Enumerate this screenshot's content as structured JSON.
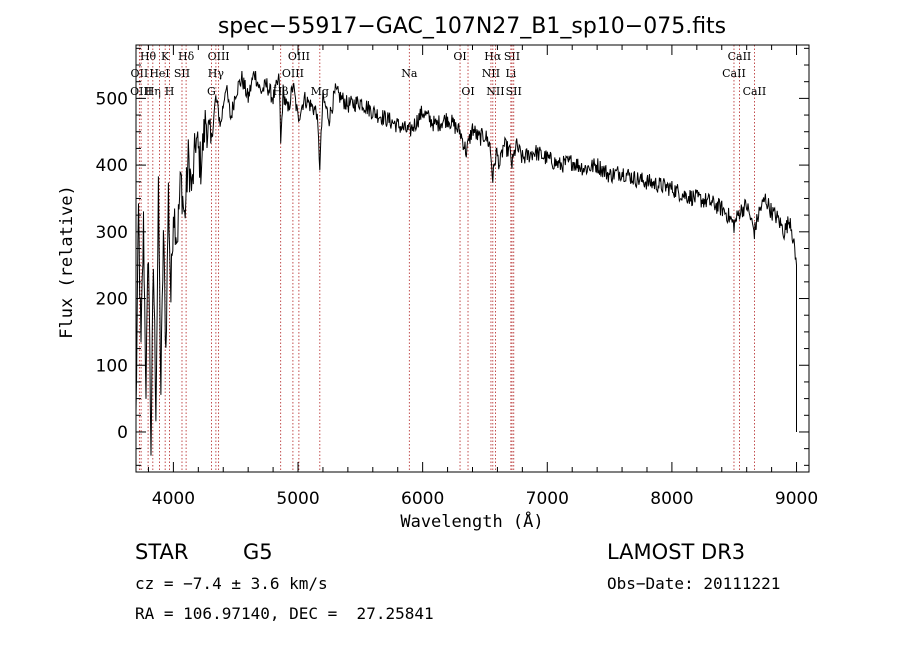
{
  "chart_data": {
    "type": "line",
    "title": "spec−55917−GAC_107N27_B1_sp10−075.fits",
    "xlabel": "Wavelength (Å)",
    "ylabel": "Flux (relative)",
    "xlim": [
      3700,
      9100
    ],
    "ylim": [
      -60,
      580
    ],
    "xticks": [
      4000,
      5000,
      6000,
      7000,
      8000,
      9000
    ],
    "yticks": [
      0,
      100,
      200,
      300,
      400,
      500
    ],
    "series": [
      {
        "name": "spectrum",
        "x": [
          3700,
          3720,
          3740,
          3760,
          3780,
          3800,
          3820,
          3840,
          3860,
          3880,
          3900,
          3920,
          3940,
          3960,
          3980,
          4000,
          4030,
          4060,
          4090,
          4120,
          4150,
          4180,
          4220,
          4260,
          4300,
          4340,
          4380,
          4420,
          4460,
          4500,
          4550,
          4600,
          4650,
          4700,
          4750,
          4800,
          4850,
          4861,
          4880,
          4920,
          4960,
          5000,
          5050,
          5100,
          5150,
          5175,
          5200,
          5250,
          5300,
          5400,
          5500,
          5600,
          5700,
          5800,
          5893,
          5950,
          6000,
          6100,
          6200,
          6300,
          6350,
          6400,
          6450,
          6500,
          6540,
          6563,
          6590,
          6620,
          6650,
          6700,
          6717,
          6750,
          6800,
          6900,
          7000,
          7100,
          7200,
          7300,
          7400,
          7500,
          7600,
          7700,
          7800,
          7900,
          8000,
          8100,
          8200,
          8300,
          8400,
          8450,
          8498,
          8542,
          8600,
          8662,
          8700,
          8750,
          8800,
          8850,
          8900,
          8950,
          9000
        ],
        "y": [
          20,
          330,
          120,
          310,
          70,
          280,
          -20,
          250,
          40,
          350,
          60,
          300,
          120,
          360,
          200,
          340,
          290,
          380,
          320,
          410,
          360,
          440,
          400,
          470,
          430,
          500,
          460,
          520,
          470,
          510,
          530,
          500,
          540,
          510,
          520,
          500,
          530,
          430,
          510,
          480,
          520,
          470,
          500,
          490,
          480,
          400,
          500,
          470,
          510,
          490,
          495,
          480,
          470,
          460,
          450,
          465,
          480,
          460,
          470,
          450,
          420,
          455,
          440,
          445,
          430,
          380,
          420,
          400,
          430,
          420,
          400,
          430,
          410,
          420,
          410,
          400,
          405,
          395,
          400,
          385,
          390,
          380,
          375,
          370,
          365,
          355,
          350,
          345,
          335,
          325,
          310,
          330,
          340,
          300,
          330,
          350,
          330,
          320,
          300,
          320,
          250
        ]
      }
    ],
    "line_marks": [
      {
        "label": "Hθ",
        "x": 3797,
        "row": 1
      },
      {
        "label": "OII",
        "x": 3727,
        "row": 2
      },
      {
        "label": "OIII",
        "x": 3741,
        "row": 3
      },
      {
        "label": "Hη",
        "x": 3835,
        "row": 3
      },
      {
        "label": "K",
        "x": 3934,
        "row": 1
      },
      {
        "label": "HeI",
        "x": 3889,
        "row": 2
      },
      {
        "label": "H",
        "x": 3969,
        "row": 3
      },
      {
        "label": "SII",
        "x": 4069,
        "row": 2
      },
      {
        "label": "Hδ",
        "x": 4102,
        "row": 1
      },
      {
        "label": "OIII",
        "x": 4363,
        "row": 1
      },
      {
        "label": "Hγ",
        "x": 4341,
        "row": 2
      },
      {
        "label": "G",
        "x": 4305,
        "row": 3
      },
      {
        "label": "OIII",
        "x": 5007,
        "row": 1
      },
      {
        "label": "OIII",
        "x": 4959,
        "row": 2
      },
      {
        "label": "Hβ",
        "x": 4861,
        "row": 3
      },
      {
        "label": "Mg",
        "x": 5175,
        "row": 3
      },
      {
        "label": "Na",
        "x": 5893,
        "row": 2
      },
      {
        "label": "OI",
        "x": 6300,
        "row": 1
      },
      {
        "label": "OI",
        "x": 6364,
        "row": 3
      },
      {
        "label": "Hα",
        "x": 6563,
        "row": 1
      },
      {
        "label": "SII",
        "x": 6717,
        "row": 1
      },
      {
        "label": "NII",
        "x": 6548,
        "row": 2
      },
      {
        "label": "Li",
        "x": 6708,
        "row": 2
      },
      {
        "label": "NII",
        "x": 6584,
        "row": 3
      },
      {
        "label": "SII",
        "x": 6731,
        "row": 3
      },
      {
        "label": "CaII",
        "x": 8542,
        "row": 1
      },
      {
        "label": "CaII",
        "x": 8498,
        "row": 2
      },
      {
        "label": "CaII",
        "x": 8662,
        "row": 3
      }
    ]
  },
  "info": {
    "class_label": "STAR",
    "subclass": "G5",
    "survey": "LAMOST DR3",
    "cz": "cz = −7.4 ± 3.6 km/s",
    "obs_date": "Obs−Date: 20111221",
    "radec": "RA = 106.97140, DEC =  27.25841"
  }
}
